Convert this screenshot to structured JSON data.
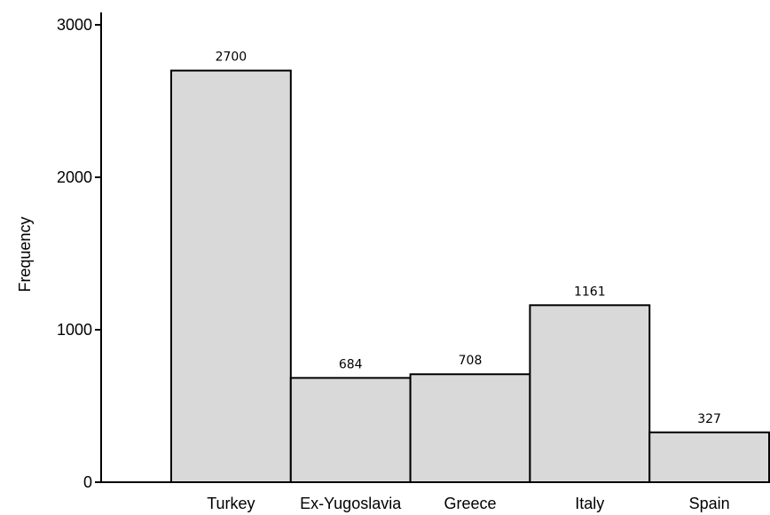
{
  "chart_data": {
    "type": "bar",
    "title": "",
    "xlabel": "",
    "ylabel": "Frequency",
    "categories": [
      "Turkey",
      "Ex-Yugoslavia",
      "Greece",
      "Italy",
      "Spain"
    ],
    "values": [
      2700,
      684,
      708,
      1161,
      327
    ],
    "value_labels": [
      "2700",
      "684",
      "708",
      "1161",
      "327"
    ],
    "ylim": [
      0,
      3000
    ],
    "yticks": [
      0,
      1000,
      2000,
      3000
    ],
    "ytick_labels": [
      "0",
      "1000",
      "2000",
      "3000"
    ],
    "grid": false,
    "legend": "none",
    "colors": {
      "bar_fill": "#d9d9d9",
      "bar_stroke": "#000000",
      "axis": "#000000"
    }
  }
}
